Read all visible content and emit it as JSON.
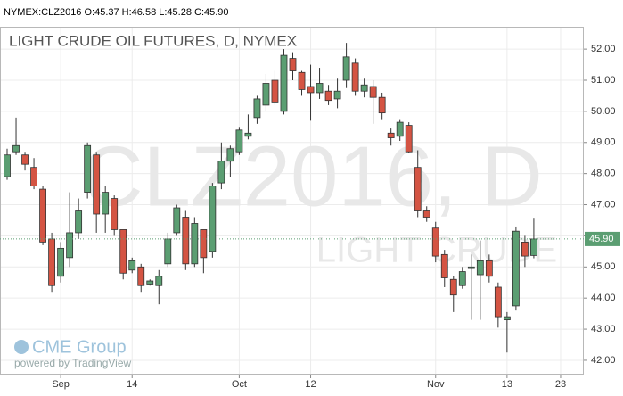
{
  "chart_data": {
    "type": "candlestick",
    "header": "NYMEX:CLZ2016 O:45.37 H:46.58 L:45.28 C:45.90",
    "title": "LIGHT CRUDE OIL FUTURES, D, NYMEX",
    "watermark": "CLZ2016, D",
    "watermark_sub": "LIGHT CRUDE",
    "logo": "CME Group",
    "credit": "powered by TradingView",
    "up_color": "#5b9e72",
    "down_color": "#d45443",
    "grid": true,
    "x": [
      0,
      1,
      2,
      3,
      4,
      5,
      6,
      7,
      8,
      9,
      10,
      11,
      12,
      13,
      14,
      15,
      16,
      17,
      18,
      19,
      20,
      21,
      22,
      23,
      24,
      25,
      26,
      27,
      28,
      29,
      30,
      31,
      32,
      33,
      34,
      35,
      36,
      37,
      38,
      39,
      40,
      41,
      42,
      43,
      44,
      45,
      46,
      47,
      48,
      49,
      50,
      51,
      52,
      53,
      54,
      55,
      56,
      57,
      58,
      59
    ],
    "xlim": [
      -0.8,
      64.6
    ],
    "xticks": [
      {
        "value": 6,
        "label": "Sep"
      },
      14,
      {
        "value": 26,
        "label": "Oct"
      },
      {
        "value": 34,
        "label": "12"
      },
      {
        "value": 48,
        "label": "Nov"
      },
      {
        "value": 56,
        "label": "13"
      },
      {
        "value": 62,
        "label": "23"
      }
    ],
    "ylim": [
      41.54,
      52.72
    ],
    "yticks": [
      {
        "value": 42,
        "label": "42.00"
      },
      {
        "value": 43,
        "label": "43.00"
      },
      {
        "value": 44,
        "label": "44.00"
      },
      {
        "value": 45,
        "label": "45.00"
      },
      {
        "value": 46,
        "label": "46.00"
      },
      {
        "value": 47,
        "label": "47.00"
      },
      {
        "value": 48,
        "label": "48.00"
      },
      {
        "value": 49,
        "label": "49.00"
      },
      {
        "value": 50,
        "label": "50.00"
      },
      {
        "value": 51,
        "label": "51.00"
      },
      {
        "value": 52,
        "label": "52.00"
      }
    ],
    "last_price": {
      "value": 45.9,
      "label": "45.90"
    },
    "open": [
      47.9,
      48.7,
      48.6,
      48.2,
      47.5,
      45.9,
      44.7,
      45.3,
      46.1,
      47.4,
      48.6,
      46.7,
      47.2,
      46.2,
      44.9,
      45.0,
      44.45,
      44.4,
      45.1,
      46.1,
      46.6,
      45.1,
      46.2,
      45.5,
      47.7,
      48.4,
      48.7,
      49.2,
      49.8,
      50.2,
      51.0,
      50.0,
      51.7,
      51.25,
      50.8,
      50.6,
      50.65,
      50.4,
      51.0,
      51.55,
      50.65,
      50.8,
      50.45,
      49.3,
      49.2,
      49.55,
      48.2,
      46.8,
      46.25,
      45.4,
      44.6,
      44.4,
      44.95,
      44.75,
      45.2,
      44.35,
      43.3,
      43.75,
      45.8,
      45.37
    ],
    "high": [
      48.8,
      49.8,
      48.7,
      48.5,
      47.6,
      46.1,
      45.8,
      47.4,
      47.2,
      49.0,
      48.7,
      47.6,
      47.3,
      46.2,
      45.3,
      45.1,
      44.6,
      44.9,
      46.1,
      47.0,
      46.8,
      46.6,
      46.2,
      47.7,
      49.0,
      48.9,
      49.5,
      49.9,
      50.5,
      51.2,
      51.3,
      52.0,
      51.9,
      51.3,
      51.5,
      51.4,
      50.85,
      51.05,
      52.2,
      51.7,
      51.05,
      51.0,
      50.6,
      49.45,
      49.75,
      49.65,
      48.75,
      46.95,
      46.45,
      45.55,
      44.7,
      45.0,
      45.4,
      45.85,
      45.4,
      44.5,
      43.55,
      46.3,
      46.0,
      46.58
    ],
    "low": [
      47.8,
      48.6,
      48.1,
      47.5,
      45.7,
      44.2,
      44.5,
      45.0,
      45.9,
      47.2,
      46.1,
      46.1,
      46.0,
      44.6,
      44.8,
      44.2,
      44.4,
      43.8,
      45.0,
      46.0,
      44.9,
      45.0,
      44.8,
      45.3,
      47.5,
      47.9,
      48.6,
      49.1,
      49.6,
      50.0,
      50.2,
      49.9,
      51.0,
      50.5,
      49.7,
      50.4,
      50.2,
      50.1,
      50.75,
      50.5,
      50.45,
      49.6,
      49.75,
      48.9,
      49.05,
      48.65,
      46.6,
      46.45,
      45.15,
      44.35,
      43.55,
      44.3,
      43.3,
      43.3,
      44.5,
      43.05,
      42.25,
      43.6,
      45.0,
      45.28
    ],
    "close": [
      48.6,
      48.9,
      48.3,
      47.6,
      45.8,
      44.4,
      45.6,
      46.1,
      46.8,
      48.9,
      46.7,
      47.4,
      46.2,
      44.8,
      45.2,
      44.4,
      44.55,
      44.7,
      45.9,
      46.9,
      45.1,
      46.4,
      45.3,
      47.6,
      48.4,
      48.8,
      49.4,
      49.3,
      50.4,
      50.9,
      50.3,
      51.8,
      51.3,
      50.7,
      50.6,
      50.9,
      50.35,
      50.65,
      51.75,
      50.65,
      50.85,
      50.45,
      49.95,
      49.15,
      49.65,
      48.7,
      46.8,
      46.6,
      45.35,
      44.65,
      44.1,
      44.85,
      45.0,
      45.2,
      44.7,
      43.4,
      43.4,
      46.15,
      45.35,
      45.9
    ]
  }
}
